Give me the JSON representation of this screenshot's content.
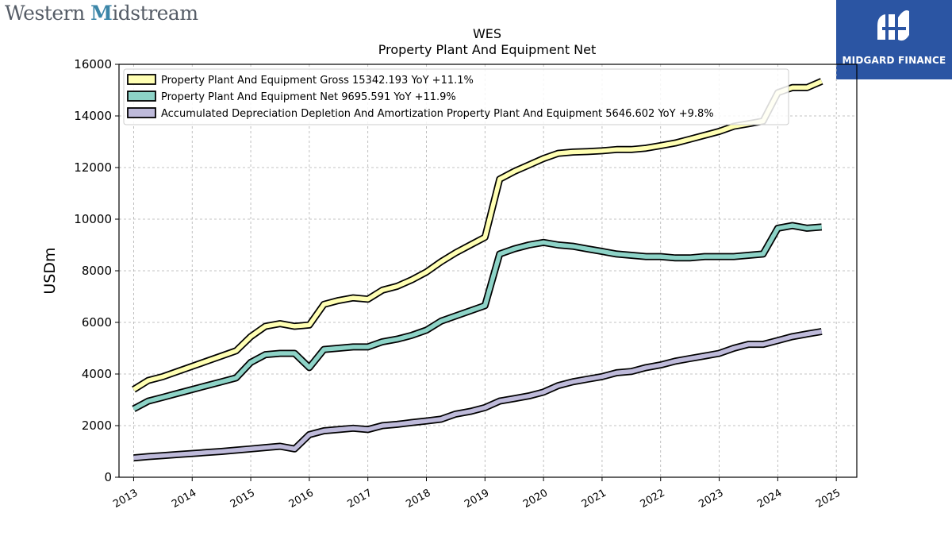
{
  "brand": {
    "name_part1": "Western ",
    "name_part2": "M",
    "name_part3": "idstream",
    "badge_text": "MIDGARD FINANCE",
    "badge_color": "#2b55a3"
  },
  "chart_data": {
    "type": "line",
    "title": "WES",
    "subtitle": "Property Plant And Equipment Net",
    "ylabel": "USDm",
    "xlabel": "",
    "ylim": [
      0,
      16000
    ],
    "xlim": [
      2012.75,
      2025.35
    ],
    "yticks": [
      0,
      2000,
      4000,
      6000,
      8000,
      10000,
      12000,
      14000,
      16000
    ],
    "xticks": [
      2013,
      2014,
      2015,
      2016,
      2017,
      2018,
      2019,
      2020,
      2021,
      2022,
      2023,
      2024,
      2025
    ],
    "grid": true,
    "legend_position": "top-left",
    "series": [
      {
        "name": "Property Plant And Equipment Gross",
        "legend_label": "Property Plant And Equipment Gross  15342.193 YoY +11.1%",
        "color": "#ffffb3",
        "x": [
          2013.0,
          2013.25,
          2013.5,
          2013.75,
          2014.0,
          2014.25,
          2014.5,
          2014.75,
          2015.0,
          2015.25,
          2015.5,
          2015.75,
          2016.0,
          2016.25,
          2016.5,
          2016.75,
          2017.0,
          2017.25,
          2017.5,
          2017.75,
          2018.0,
          2018.25,
          2018.5,
          2018.75,
          2019.0,
          2019.25,
          2019.5,
          2019.75,
          2020.0,
          2020.25,
          2020.5,
          2020.75,
          2021.0,
          2021.25,
          2021.5,
          2021.75,
          2022.0,
          2022.25,
          2022.5,
          2022.75,
          2023.0,
          2023.25,
          2023.5,
          2023.75,
          2024.0,
          2024.25,
          2024.5,
          2024.75
        ],
        "values": [
          3400,
          3750,
          3900,
          4100,
          4300,
          4500,
          4700,
          4900,
          5450,
          5850,
          5950,
          5850,
          5900,
          6700,
          6850,
          6950,
          6900,
          7250,
          7400,
          7650,
          7950,
          8350,
          8700,
          9000,
          9300,
          11550,
          11850,
          12100,
          12350,
          12550,
          12600,
          12620,
          12650,
          12700,
          12700,
          12750,
          12850,
          12950,
          13100,
          13250,
          13400,
          13600,
          13700,
          13800,
          14900,
          15100,
          15100,
          15342
        ]
      },
      {
        "name": "Property Plant And Equipment Net",
        "legend_label": "Property Plant And Equipment Net  9695.591 YoY +11.9%",
        "color": "#8dd3c7",
        "x": [
          2013.0,
          2013.25,
          2013.5,
          2013.75,
          2014.0,
          2014.25,
          2014.5,
          2014.75,
          2015.0,
          2015.25,
          2015.5,
          2015.75,
          2016.0,
          2016.25,
          2016.5,
          2016.75,
          2017.0,
          2017.25,
          2017.5,
          2017.75,
          2018.0,
          2018.25,
          2018.5,
          2018.75,
          2019.0,
          2019.25,
          2019.5,
          2019.75,
          2020.0,
          2020.25,
          2020.5,
          2020.75,
          2021.0,
          2021.25,
          2021.5,
          2021.75,
          2022.0,
          2022.25,
          2022.5,
          2022.75,
          2023.0,
          2023.25,
          2023.5,
          2023.75,
          2024.0,
          2024.25,
          2024.5,
          2024.75
        ],
        "values": [
          2650,
          2950,
          3100,
          3250,
          3400,
          3550,
          3700,
          3850,
          4450,
          4750,
          4800,
          4800,
          4250,
          4950,
          5000,
          5050,
          5050,
          5250,
          5350,
          5500,
          5700,
          6050,
          6250,
          6450,
          6650,
          8650,
          8850,
          9000,
          9100,
          9000,
          8950,
          8850,
          8750,
          8650,
          8600,
          8550,
          8550,
          8500,
          8500,
          8550,
          8550,
          8550,
          8600,
          8650,
          9650,
          9750,
          9650,
          9696
        ]
      },
      {
        "name": "Accumulated Depreciation Depletion And Amortization Property Plant And Equipment",
        "legend_label": "Accumulated Depreciation Depletion And Amortization Property Plant And Equipment  5646.602 YoY +9.8%",
        "color": "#bebada",
        "x": [
          2013.0,
          2013.25,
          2013.5,
          2013.75,
          2014.0,
          2014.25,
          2014.5,
          2014.75,
          2015.0,
          2015.25,
          2015.5,
          2015.75,
          2016.0,
          2016.25,
          2016.5,
          2016.75,
          2017.0,
          2017.25,
          2017.5,
          2017.75,
          2018.0,
          2018.25,
          2018.5,
          2018.75,
          2019.0,
          2019.25,
          2019.5,
          2019.75,
          2020.0,
          2020.25,
          2020.5,
          2020.75,
          2021.0,
          2021.25,
          2021.5,
          2021.75,
          2022.0,
          2022.25,
          2022.5,
          2022.75,
          2023.0,
          2023.25,
          2023.5,
          2023.75,
          2024.0,
          2024.25,
          2024.5,
          2024.75
        ],
        "values": [
          750,
          800,
          840,
          880,
          920,
          960,
          1000,
          1050,
          1100,
          1150,
          1200,
          1100,
          1650,
          1800,
          1850,
          1900,
          1850,
          2000,
          2050,
          2120,
          2180,
          2250,
          2450,
          2550,
          2700,
          2950,
          3050,
          3150,
          3300,
          3550,
          3700,
          3800,
          3900,
          4050,
          4100,
          4250,
          4350,
          4500,
          4600,
          4700,
          4800,
          5000,
          5150,
          5150,
          5300,
          5450,
          5550,
          5647
        ]
      }
    ]
  }
}
